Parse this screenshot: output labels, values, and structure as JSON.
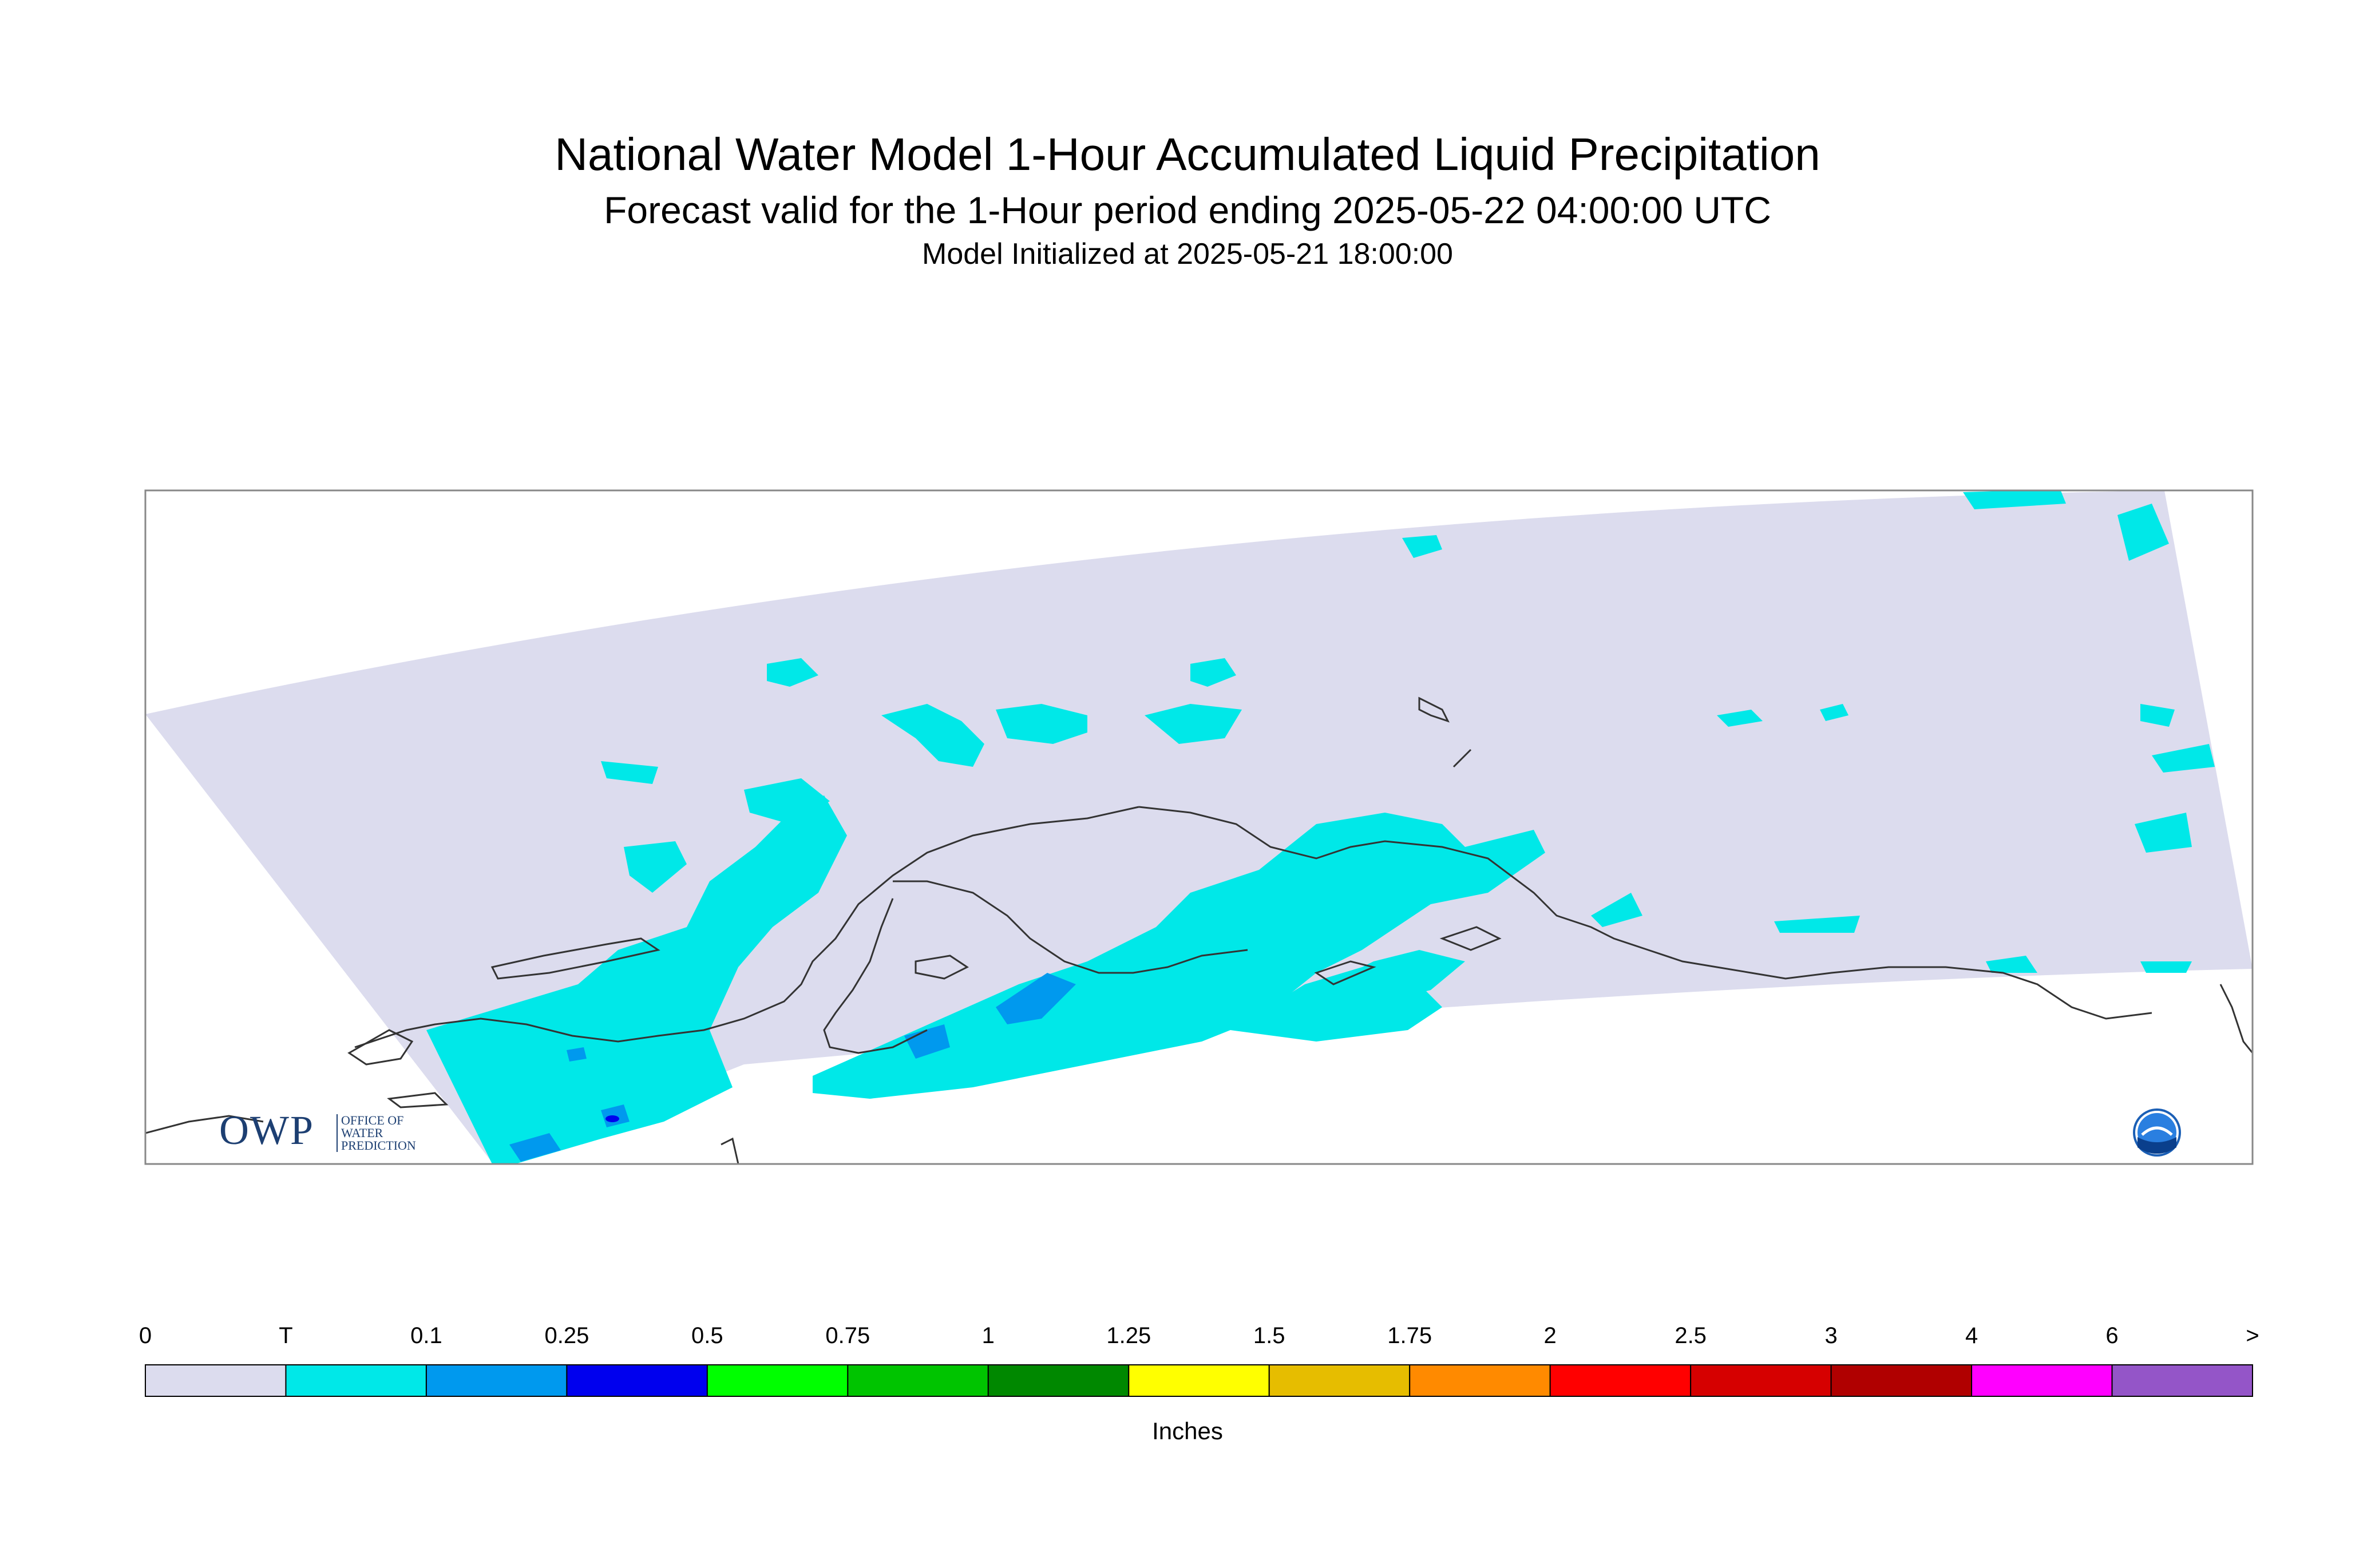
{
  "title": "National Water Model 1-Hour Accumulated Liquid Precipitation",
  "subtitle": "Forecast valid for the 1-Hour period ending 2025-05-22 04:00:00 UTC",
  "init": "Model Initialized at 2025-05-21 18:00:00",
  "legend": {
    "units": "Inches",
    "ticks": [
      "0",
      "T",
      "0.1",
      "0.25",
      "0.5",
      "0.75",
      "1",
      "1.25",
      "1.5",
      "1.75",
      "2",
      "2.5",
      "3",
      "4",
      "6",
      ">"
    ],
    "colors": [
      "#dcdcee",
      "#00e8e8",
      "#0099ee",
      "#0000ee",
      "#00ff00",
      "#00c400",
      "#008800",
      "#ffff00",
      "#e6bd00",
      "#ff8a00",
      "#ff0000",
      "#d60000",
      "#b00000",
      "#ff00ff",
      "#9455c8"
    ]
  },
  "logos": {
    "owp_main": "OWP",
    "owp_sub": [
      "OFFICE OF",
      "WATER",
      "PREDICTION"
    ],
    "noaa": "NOAA"
  },
  "colors": {
    "no_precip": "#dcdcee",
    "trace": "#00e8e8",
    "light": "#0099ee",
    "moderate": "#0000ee",
    "coast": "#333333",
    "frame": "#888888"
  }
}
